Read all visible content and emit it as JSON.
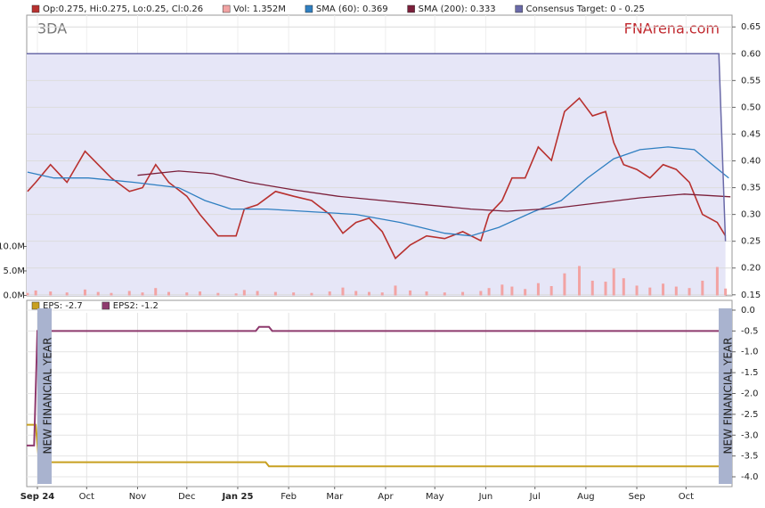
{
  "chart_data": [
    {
      "type": "stock",
      "symbol": "3DA",
      "brand": "FNArena.com",
      "xlim": [
        -6.5,
        423
      ],
      "ylim": [
        0.148,
        0.672
      ],
      "y2lim": [
        -0.1,
        57.2
      ],
      "yticks": [
        0.15,
        {
          "value": 0.2,
          "label": "0.20"
        },
        0.25,
        {
          "value": 0.3,
          "label": "0.30"
        },
        0.35,
        {
          "value": 0.4,
          "label": "0.40"
        },
        0.45,
        {
          "value": 0.5,
          "label": "0.50"
        },
        0.55,
        {
          "value": 0.6,
          "label": "0.60"
        },
        0.65
      ],
      "y2ticks": [
        {
          "value": 0,
          "label": "0.0M"
        },
        {
          "value": 5,
          "label": "5.0M"
        },
        {
          "value": 10,
          "label": "10.0M"
        }
      ],
      "series": [
        {
          "name": "Op:0.275, Hi:0.275, Lo:0.25, Cl:0.26",
          "color": "#b8312f",
          "kind": "line",
          "x": [
            -6,
            -1,
            8,
            18,
            29,
            37,
            45,
            56,
            64,
            72,
            80,
            91,
            99,
            110,
            121,
            126,
            134,
            145,
            156,
            167,
            178,
            186,
            194,
            202,
            210,
            218,
            227,
            237,
            248,
            259,
            270,
            275,
            283,
            289,
            297,
            305,
            313,
            321,
            330,
            338,
            346,
            351,
            357,
            365,
            373,
            381,
            389,
            397,
            405,
            414,
            419
          ],
          "values": [
            0.343,
            0.36,
            0.393,
            0.36,
            0.418,
            0.393,
            0.368,
            0.343,
            0.35,
            0.393,
            0.36,
            0.334,
            0.3,
            0.26,
            0.26,
            0.31,
            0.318,
            0.343,
            0.334,
            0.326,
            0.3,
            0.265,
            0.285,
            0.293,
            0.268,
            0.218,
            0.243,
            0.26,
            0.255,
            0.268,
            0.251,
            0.3,
            0.326,
            0.368,
            0.368,
            0.426,
            0.401,
            0.492,
            0.517,
            0.484,
            0.492,
            0.434,
            0.393,
            0.384,
            0.368,
            0.393,
            0.384,
            0.36,
            0.3,
            0.285,
            0.26
          ]
        },
        {
          "name": "Vol: 1.352M",
          "color": "#f2a3a3",
          "kind": "bar",
          "axis": "y2",
          "x": [
            -6,
            -1,
            8,
            18,
            29,
            37,
            45,
            56,
            64,
            72,
            80,
            91,
            99,
            110,
            121,
            126,
            134,
            145,
            156,
            167,
            178,
            186,
            194,
            202,
            210,
            218,
            227,
            237,
            248,
            259,
            270,
            275,
            283,
            289,
            297,
            305,
            313,
            321,
            330,
            338,
            346,
            351,
            357,
            365,
            373,
            381,
            389,
            397,
            405,
            414,
            419
          ],
          "values": [
            0.5,
            1.0,
            0.8,
            0.6,
            1.2,
            0.7,
            0.5,
            0.9,
            0.6,
            1.5,
            0.7,
            0.6,
            0.8,
            0.5,
            0.4,
            1.1,
            0.9,
            0.7,
            0.6,
            0.5,
            0.8,
            1.6,
            0.9,
            0.7,
            0.6,
            2.0,
            1.0,
            0.8,
            0.6,
            0.7,
            0.9,
            1.5,
            2.2,
            1.8,
            1.3,
            2.5,
            1.9,
            4.5,
            6.0,
            3.0,
            2.8,
            5.5,
            3.5,
            2.0,
            1.6,
            2.4,
            1.8,
            1.5,
            3.0,
            5.8,
            1.4
          ]
        },
        {
          "name": "SMA (60): 0.369",
          "color": "#2f7fc1",
          "kind": "line",
          "x": [
            -6,
            10,
            31,
            59,
            86,
            102,
            118,
            140,
            167,
            194,
            221,
            248,
            264,
            281,
            302,
            319,
            335,
            351,
            367,
            384,
            400,
            411,
            421
          ],
          "values": [
            0.379,
            0.368,
            0.368,
            0.36,
            0.35,
            0.326,
            0.31,
            0.31,
            0.305,
            0.3,
            0.285,
            0.265,
            0.26,
            0.276,
            0.305,
            0.326,
            0.368,
            0.404,
            0.421,
            0.426,
            0.421,
            0.393,
            0.368
          ]
        },
        {
          "name": "SMA (200): 0.333",
          "color": "#7b1f3a",
          "kind": "line",
          "x": [
            61,
            86,
            107,
            129,
            156,
            183,
            210,
            237,
            264,
            286,
            313,
            340,
            367,
            394,
            422
          ],
          "values": [
            0.373,
            0.381,
            0.376,
            0.36,
            0.346,
            0.334,
            0.326,
            0.318,
            0.31,
            0.306,
            0.311,
            0.321,
            0.331,
            0.338,
            0.333
          ]
        },
        {
          "name": "Consensus Target: 0 - 0.25",
          "color": "#6a6aa8",
          "kind": "area",
          "x": [
            -6.5,
            415,
            419
          ],
          "values": [
            0.6,
            0.6,
            0.25
          ]
        }
      ]
    },
    {
      "type": "line",
      "xlim": [
        -6.5,
        423
      ],
      "ylim": [
        -4.235,
        0.235
      ],
      "yticks": [
        {
          "value": 0,
          "label": "0.0"
        },
        -0.5,
        {
          "value": -1,
          "label": "-1.0"
        },
        -1.5,
        {
          "value": -2,
          "label": "-2.0"
        },
        -2.5,
        {
          "value": -3,
          "label": "-3.0"
        },
        -3.5,
        {
          "value": -4,
          "label": "-4.0"
        }
      ],
      "xticks": [
        {
          "value": 0,
          "label": "Sep 24"
        },
        {
          "value": 30,
          "label": "Oct"
        },
        {
          "value": 61,
          "label": "Nov"
        },
        {
          "value": 91,
          "label": "Dec"
        },
        {
          "value": 122,
          "label": "Jan 25"
        },
        {
          "value": 153,
          "label": "Feb"
        },
        {
          "value": 181,
          "label": "Mar"
        },
        {
          "value": 212,
          "label": "Apr"
        },
        {
          "value": 242,
          "label": "May"
        },
        {
          "value": 273,
          "label": "Jun"
        },
        {
          "value": 303,
          "label": "Jul"
        },
        {
          "value": 334,
          "label": "Aug"
        },
        {
          "value": 365,
          "label": "Sep"
        },
        {
          "value": 395,
          "label": "Oct"
        }
      ],
      "annotations": [
        "NEW FINANCIAL YEAR",
        "NEW FINANCIAL YEAR"
      ],
      "series": [
        {
          "name": "EPS: -2.7",
          "color": "#c8a020",
          "x": [
            -6.5,
            -1,
            1,
            139,
            141,
            423
          ],
          "values": [
            -2.75,
            -2.75,
            -3.65,
            -3.65,
            -3.75,
            -3.75
          ]
        },
        {
          "name": "EPS2: -1.2",
          "color": "#8e3a6e",
          "x": [
            -6.5,
            -2,
            0,
            133,
            135,
            141,
            143,
            423
          ],
          "values": [
            -3.25,
            -3.25,
            -0.5,
            -0.5,
            -0.4,
            -0.4,
            -0.5,
            -0.5
          ]
        }
      ]
    }
  ]
}
